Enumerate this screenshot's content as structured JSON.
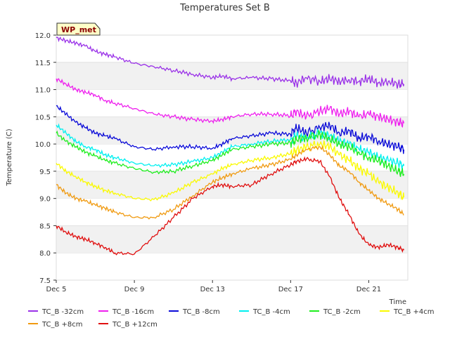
{
  "chart_data": {
    "type": "line",
    "title": "Temperatures Set B",
    "xlabel": "Time",
    "ylabel": "Temperature (C)",
    "site_label": "WP_met",
    "x_range": [
      "2023-12-05",
      "2023-12-23"
    ],
    "xlim_days": [
      0,
      18
    ],
    "ylim": [
      7.5,
      12.0
    ],
    "x_ticks": [
      {
        "label": "Dec 5",
        "day": 0
      },
      {
        "label": "Dec 9",
        "day": 4
      },
      {
        "label": "Dec 13",
        "day": 8
      },
      {
        "label": "Dec 17",
        "day": 12
      },
      {
        "label": "Dec 21",
        "day": 16
      }
    ],
    "y_ticks": [
      7.5,
      8.0,
      8.5,
      9.0,
      9.5,
      10.0,
      10.5,
      11.0,
      11.5,
      12.0
    ],
    "grid": "horizontal bands",
    "legend_position": "bottom",
    "series": [
      {
        "name": "TC_B -32cm",
        "color": "#9a31e8",
        "x": [
          0.0,
          0.5,
          1,
          1.5,
          2,
          2.5,
          3,
          4,
          5,
          6,
          7,
          8,
          8.5,
          9,
          10,
          11,
          12,
          12.3,
          12.8,
          13.5,
          14,
          14.5,
          15,
          15.5,
          16,
          16.5,
          17,
          17.5,
          17.8
        ],
        "y": [
          11.95,
          11.9,
          11.85,
          11.8,
          11.7,
          11.65,
          11.6,
          11.48,
          11.42,
          11.35,
          11.28,
          11.22,
          11.25,
          11.2,
          11.22,
          11.2,
          11.16,
          11.12,
          11.22,
          11.15,
          11.2,
          11.15,
          11.18,
          11.15,
          11.2,
          11.12,
          11.15,
          11.1,
          11.1
        ]
      },
      {
        "name": "TC_B -16cm",
        "color": "#ee20ee",
        "x": [
          0.0,
          0.5,
          1,
          1.5,
          2,
          2.5,
          3,
          4,
          5,
          6,
          7,
          8,
          8.5,
          9,
          10,
          11,
          12,
          12.3,
          12.8,
          13.5,
          14,
          14.5,
          15,
          15.5,
          16,
          16.5,
          17,
          17.5,
          17.8
        ],
        "y": [
          11.2,
          11.1,
          11.0,
          10.95,
          10.9,
          10.8,
          10.75,
          10.65,
          10.55,
          10.5,
          10.45,
          10.42,
          10.45,
          10.5,
          10.55,
          10.55,
          10.52,
          10.6,
          10.5,
          10.6,
          10.65,
          10.55,
          10.6,
          10.5,
          10.55,
          10.5,
          10.45,
          10.4,
          10.38
        ]
      },
      {
        "name": "TC_B -8cm",
        "color": "#0a0ad8",
        "x": [
          0.0,
          0.5,
          1,
          1.5,
          2,
          2.5,
          3,
          4,
          5,
          6,
          7,
          8,
          8.5,
          9,
          10,
          11,
          12,
          12.3,
          12.8,
          13.5,
          14,
          14.5,
          15,
          15.5,
          16,
          16.5,
          17,
          17.5,
          17.8
        ],
        "y": [
          10.7,
          10.55,
          10.4,
          10.3,
          10.2,
          10.15,
          10.1,
          9.95,
          9.9,
          9.95,
          9.95,
          9.92,
          10.0,
          10.1,
          10.15,
          10.2,
          10.18,
          10.3,
          10.2,
          10.3,
          10.35,
          10.2,
          10.25,
          10.1,
          10.15,
          10.05,
          10.0,
          9.95,
          9.9
        ]
      },
      {
        "name": "TC_B -4cm",
        "color": "#00f0f0",
        "x": [
          0.0,
          0.5,
          1,
          1.5,
          2,
          2.5,
          3,
          4,
          5,
          6,
          7,
          8,
          8.5,
          9,
          10,
          11,
          12,
          12.3,
          12.8,
          13.5,
          14,
          14.5,
          15,
          15.5,
          16,
          16.5,
          17,
          17.5,
          17.8
        ],
        "y": [
          10.35,
          10.2,
          10.05,
          9.95,
          9.9,
          9.8,
          9.75,
          9.65,
          9.6,
          9.62,
          9.68,
          9.75,
          9.85,
          9.95,
          10.0,
          10.05,
          10.08,
          10.15,
          10.1,
          10.2,
          10.15,
          10.05,
          10.0,
          9.9,
          9.85,
          9.75,
          9.7,
          9.65,
          9.6
        ]
      },
      {
        "name": "TC_B -2cm",
        "color": "#1eee1e",
        "x": [
          0.0,
          0.5,
          1,
          1.5,
          2,
          2.5,
          3,
          4,
          5,
          6,
          7,
          8,
          8.5,
          9,
          10,
          11,
          12,
          12.3,
          12.8,
          13.5,
          14,
          14.5,
          15,
          15.5,
          16,
          16.5,
          17,
          17.5,
          17.8
        ],
        "y": [
          10.2,
          10.05,
          9.95,
          9.85,
          9.78,
          9.7,
          9.65,
          9.55,
          9.48,
          9.5,
          9.6,
          9.7,
          9.8,
          9.9,
          9.95,
          10.0,
          10.02,
          10.08,
          10.12,
          10.18,
          10.1,
          10.0,
          9.95,
          9.85,
          9.75,
          9.7,
          9.6,
          9.5,
          9.45
        ]
      },
      {
        "name": "TC_B +4cm",
        "color": "#fafa00",
        "x": [
          0.0,
          0.5,
          1,
          1.5,
          2,
          2.5,
          3,
          4,
          5,
          6,
          7,
          8,
          8.5,
          9,
          10,
          11,
          12,
          12.3,
          12.8,
          13.5,
          14,
          14.5,
          15,
          15.5,
          16,
          16.5,
          17,
          17.5,
          17.8
        ],
        "y": [
          9.65,
          9.5,
          9.4,
          9.3,
          9.22,
          9.15,
          9.1,
          9.0,
          8.98,
          9.1,
          9.3,
          9.45,
          9.55,
          9.62,
          9.7,
          9.75,
          9.82,
          9.88,
          9.95,
          10.0,
          9.95,
          9.8,
          9.7,
          9.55,
          9.45,
          9.3,
          9.2,
          9.1,
          9.02
        ]
      },
      {
        "name": "TC_B +8cm",
        "color": "#f09a10",
        "x": [
          0.0,
          0.5,
          1,
          1.5,
          2,
          2.5,
          3,
          4,
          5,
          6,
          7,
          8,
          8.5,
          9,
          10,
          11,
          12,
          12.3,
          12.8,
          13.5,
          14,
          14.5,
          15,
          15.5,
          16,
          16.5,
          17,
          17.5,
          17.8
        ],
        "y": [
          9.25,
          9.1,
          9.0,
          8.95,
          8.88,
          8.82,
          8.75,
          8.65,
          8.65,
          8.8,
          9.05,
          9.3,
          9.38,
          9.45,
          9.55,
          9.62,
          9.72,
          9.8,
          9.9,
          9.95,
          9.8,
          9.6,
          9.5,
          9.3,
          9.15,
          9.0,
          8.9,
          8.8,
          8.7
        ]
      },
      {
        "name": "TC_B +12cm",
        "color": "#e01010",
        "x": [
          0.0,
          0.5,
          1,
          1.5,
          2,
          2.5,
          3,
          4,
          5,
          6,
          7,
          8,
          8.5,
          9,
          10,
          11,
          12,
          12.3,
          12.8,
          13.5,
          14,
          14.5,
          15,
          15.5,
          16,
          16.5,
          17,
          17.5,
          17.8
        ],
        "y": [
          8.5,
          8.38,
          8.3,
          8.25,
          8.18,
          8.1,
          8.0,
          7.98,
          8.3,
          8.65,
          9.0,
          9.22,
          9.25,
          9.22,
          9.25,
          9.45,
          9.62,
          9.68,
          9.72,
          9.68,
          9.4,
          9.0,
          8.7,
          8.35,
          8.15,
          8.1,
          8.15,
          8.1,
          8.05
        ]
      }
    ]
  }
}
